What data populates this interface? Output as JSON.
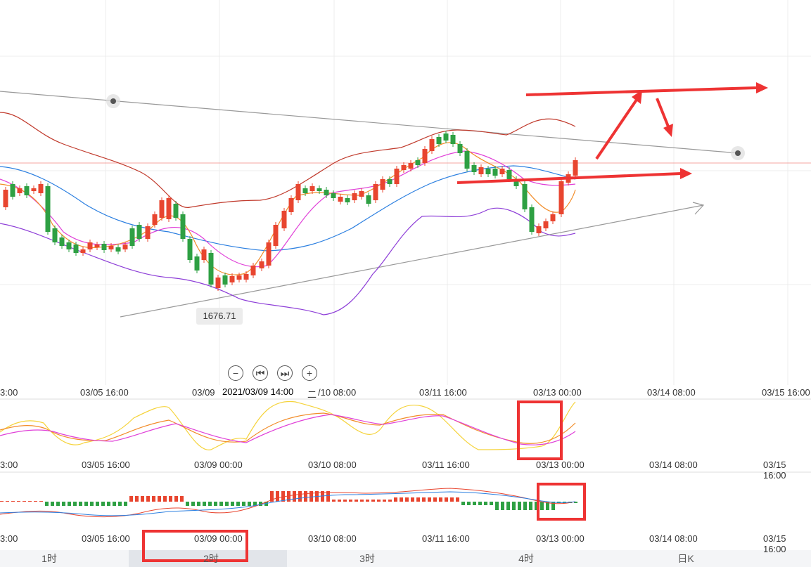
{
  "main_xticks": [
    "3:00",
    "03/05 16:00",
    "03/09",
    "2021/03/09 14:00",
    "二",
    "/10 08:00",
    "03/11 16:00",
    "03/13 00:00",
    "03/14 08:00",
    "03/15 16:00"
  ],
  "sub_xticks": [
    "3:00",
    "03/05 16:00",
    "03/09 00:00",
    "03/10 08:00",
    "03/11 16:00",
    "03/13 00:00",
    "03/14 08:00",
    "03/15 16:00"
  ],
  "price_marker": "1676.71",
  "crosshair_time": "2021/03/09 14:00",
  "controls": {
    "zoom_out": "−",
    "prev": "⏮",
    "next": "⏭",
    "zoom_in": "+"
  },
  "tabs": [
    "1时",
    "2时",
    "3时",
    "4时",
    "日K"
  ],
  "colors": {
    "up": "#e8452f",
    "down": "#2ea043",
    "ma_orange": "#f28c28",
    "ma_magenta": "#e040d8",
    "ma_blue": "#2b7fe0",
    "boll_upper": "#c0392b",
    "boll_lower": "#8e3fd8",
    "kdj_yellow": "#f5d33a",
    "annotation": "#ee3333"
  },
  "chart_data": {
    "type": "candlestick",
    "candles": [
      [
        1,
        0
      ],
      [
        0,
        1
      ],
      [
        1,
        0
      ],
      [
        1,
        1
      ],
      [
        0,
        0
      ],
      [
        1,
        1
      ],
      [
        0,
        0
      ],
      [
        1,
        0
      ],
      [
        0,
        1
      ],
      [
        1,
        0
      ],
      [
        0,
        1
      ],
      [
        0,
        0
      ],
      [
        1,
        1
      ],
      [
        0,
        0
      ],
      [
        1,
        1
      ],
      [
        0,
        1
      ],
      [
        1,
        1
      ],
      [
        0,
        0
      ],
      [
        1,
        0
      ],
      [
        0,
        1
      ]
    ],
    "annotations": [
      "upper trendline",
      "lower trendline",
      "arrows"
    ]
  }
}
